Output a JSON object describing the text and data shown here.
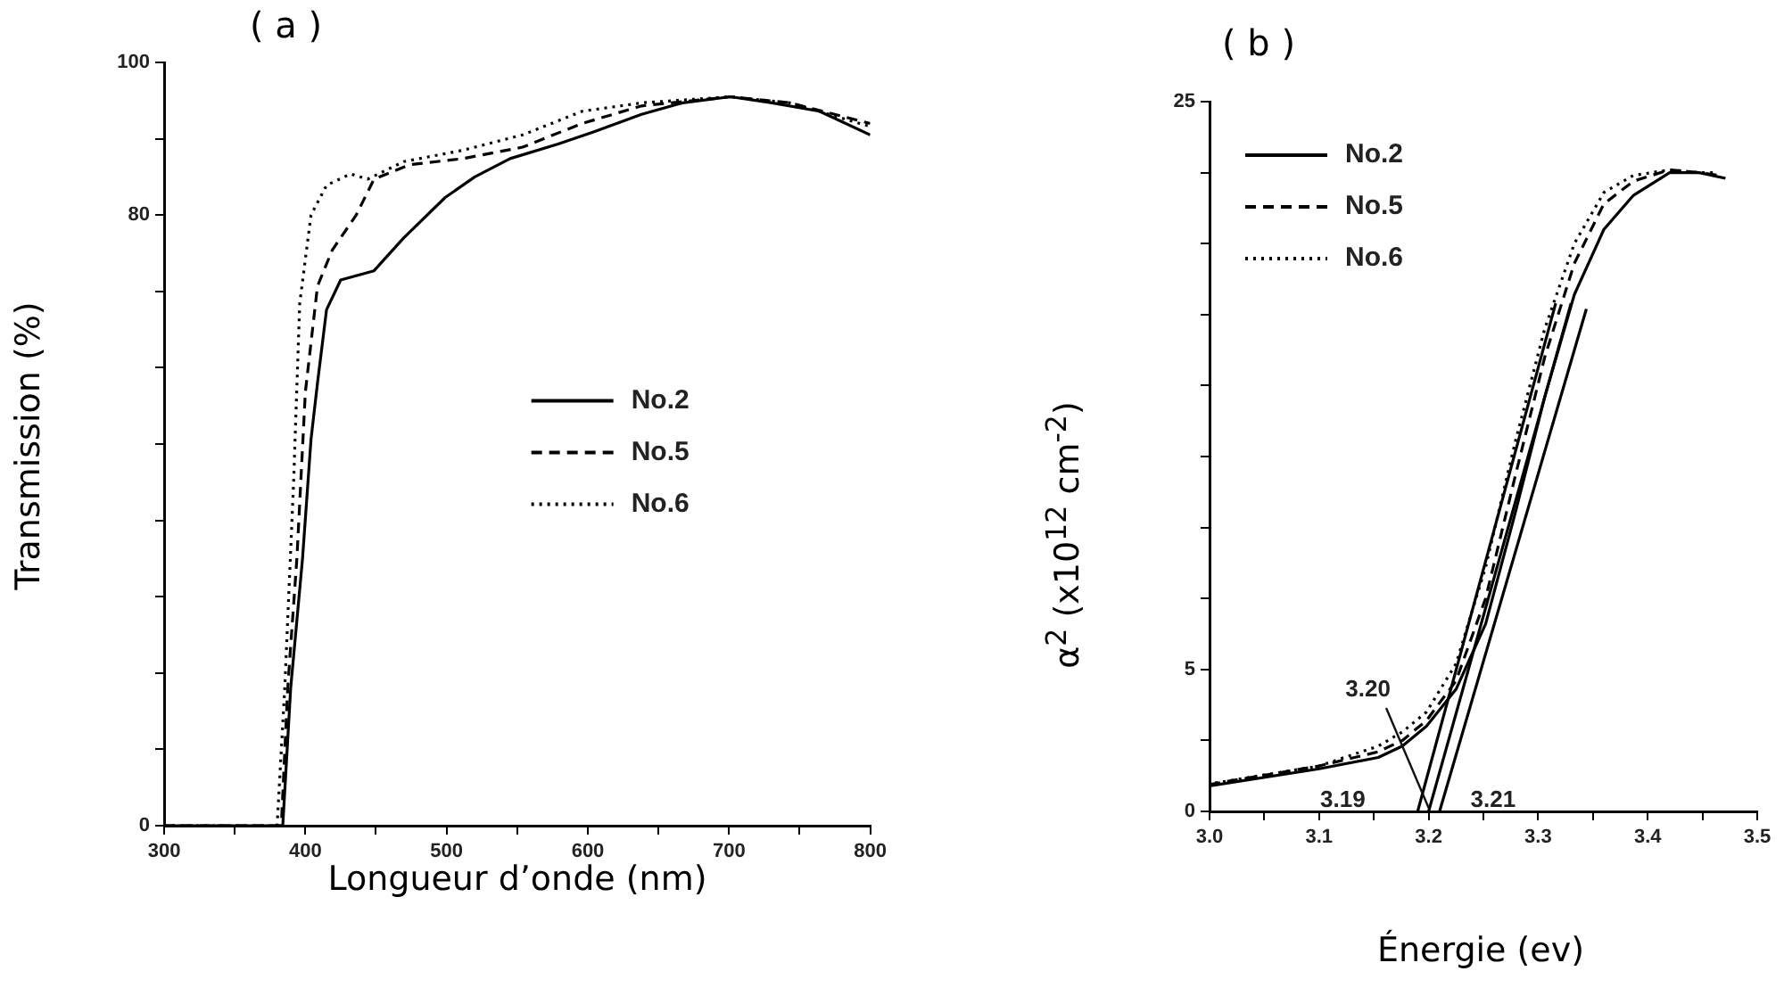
{
  "chart_data": [
    {
      "type": "line",
      "title": "( a )",
      "xlabel": "Longueur d’onde (nm)",
      "ylabel": "Transmission (%)",
      "xlim": [
        300,
        800
      ],
      "xticks": [
        300,
        {
          "value": 350,
          "label": null
        },
        400,
        {
          "value": 450,
          "label": null
        },
        500,
        {
          "value": 550,
          "label": null
        },
        600,
        {
          "value": 650,
          "label": null
        },
        700,
        {
          "value": 750,
          "label": null
        },
        800
      ],
      "ylim": [
        0,
        100
      ],
      "yticks": [
        0,
        {
          "value": 10,
          "label": null
        },
        {
          "value": 20,
          "label": null
        },
        {
          "value": 30,
          "label": null
        },
        {
          "value": 40,
          "label": null
        },
        {
          "value": 50,
          "label": null
        },
        {
          "value": 60,
          "label": null
        },
        {
          "value": 70,
          "label": null
        },
        80,
        {
          "value": 90,
          "label": null
        },
        100
      ],
      "grid": false,
      "legend": "right",
      "marker": "none",
      "series": [
        {
          "name": "No.2",
          "color": "#000000",
          "line_style": "solid",
          "x": [
            300,
            340,
            384,
            389.6,
            398,
            404,
            408.6,
            415,
            425,
            448.6,
            469.6,
            499,
            520,
            545,
            579,
            604,
            638,
            667,
            701,
            730.5,
            764,
            800
          ],
          "values": [
            0,
            0,
            0,
            18,
            35,
            50.6,
            58,
            67.6,
            71.5,
            72.7,
            77,
            82.3,
            85,
            87.4,
            89.3,
            90.9,
            93.2,
            94.7,
            95.5,
            94.7,
            93.6,
            90.5
          ]
        },
        {
          "name": "No.5",
          "color": "#000000",
          "line_style": "dashed",
          "x": [
            300,
            340,
            383,
            387.5,
            394,
            400,
            408.6,
            419,
            436,
            448.6,
            474,
            511.7,
            553.8,
            596,
            638,
            680,
            701,
            743,
            800
          ],
          "values": [
            0,
            0,
            0,
            18,
            35,
            56.8,
            70.7,
            75.4,
            80,
            84.7,
            86.6,
            87.4,
            88.9,
            92,
            94.3,
            95.1,
            95.5,
            94.7,
            92
          ]
        },
        {
          "name": "No.6",
          "color": "#000000",
          "line_style": "dotted",
          "x": [
            300,
            340,
            380,
            385.4,
            391.7,
            396,
            404,
            415,
            432,
            444,
            469.6,
            511.7,
            553.8,
            596,
            638,
            701,
            743,
            800
          ],
          "values": [
            0,
            0,
            0,
            18,
            45,
            68.4,
            80,
            83.9,
            85.4,
            84.7,
            87,
            88.5,
            90.5,
            93.6,
            94.7,
            95.5,
            94.7,
            91.6
          ]
        }
      ]
    },
    {
      "type": "line",
      "title": "( b )",
      "xlabel": "Énergie (ev)",
      "ylabel": "α$^{2}$ (x10$^{12}$ cm$^{-2}$)",
      "xlim": [
        3.0,
        3.5
      ],
      "xticks": [
        "3.0",
        {
          "value": 3.05,
          "label": null
        },
        3.1,
        {
          "value": 3.15,
          "label": null
        },
        3.2,
        {
          "value": 3.25,
          "label": null
        },
        3.3,
        {
          "value": 3.35,
          "label": null
        },
        3.4,
        {
          "value": 3.45,
          "label": null
        },
        3.5
      ],
      "ylim": [
        0,
        25
      ],
      "yticks": [
        0,
        {
          "value": 2.5,
          "label": null
        },
        5,
        {
          "value": 7.5,
          "label": null
        },
        {
          "value": 10,
          "label": null
        },
        {
          "value": 12.5,
          "label": null
        },
        {
          "value": 15,
          "label": null
        },
        {
          "value": 17.5,
          "label": null
        },
        {
          "value": 20,
          "label": null
        },
        {
          "value": 22.5,
          "label": null
        },
        25
      ],
      "grid": false,
      "legend": "top left",
      "marker": "none",
      "series": [
        {
          "name": "No.2",
          "color": "#000000",
          "line_style": "solid",
          "x": [
            3.0,
            3.1,
            3.154,
            3.176,
            3.198,
            3.225,
            3.252,
            3.279,
            3.306,
            3.333,
            3.36,
            3.387,
            3.42,
            3.447,
            3.471
          ],
          "values": [
            0.9,
            1.5,
            1.9,
            2.3,
            3.0,
            4.3,
            6.6,
            10.5,
            14.6,
            18.2,
            20.5,
            21.7,
            22.5,
            22.5,
            22.3
          ]
        },
        {
          "name": "No.5",
          "color": "#000000",
          "line_style": "dashed",
          "x": [
            3.0,
            3.1,
            3.154,
            3.176,
            3.198,
            3.225,
            3.252,
            3.279,
            3.306,
            3.333,
            3.36,
            3.387,
            3.42,
            3.447,
            3.465
          ],
          "values": [
            0.95,
            1.6,
            2.1,
            2.5,
            3.2,
            4.6,
            7.5,
            11.8,
            16,
            19.3,
            21.4,
            22.2,
            22.6,
            22.5,
            22.4
          ]
        },
        {
          "name": "No.6",
          "color": "#000000",
          "line_style": "dotted",
          "x": [
            3.005,
            3.1,
            3.154,
            3.176,
            3.198,
            3.225,
            3.252,
            3.279,
            3.306,
            3.333,
            3.36,
            3.387,
            3.42,
            3.447,
            3.46
          ],
          "values": [
            1.0,
            1.6,
            2.3,
            2.8,
            3.5,
            5.2,
            8.6,
            13,
            17,
            20,
            21.8,
            22.4,
            22.6,
            22.5,
            22.5
          ]
        },
        {
          "type": "line",
          "color": "#000000",
          "line_style": "solid",
          "x": [
            3.19,
            3.316
          ],
          "values": [
            0,
            17.9
          ]
        },
        {
          "type": "line",
          "color": "#000000",
          "line_style": "solid",
          "x": [
            3.2,
            3.33
          ],
          "values": [
            0,
            17.9
          ]
        },
        {
          "type": "line",
          "color": "#000000",
          "line_style": "solid",
          "x": [
            3.21,
            3.344
          ],
          "values": [
            0,
            17.7
          ]
        }
      ],
      "annotations": [
        {
          "text": "3.19",
          "x": 3.19,
          "y": 0
        },
        {
          "text": "3.20",
          "x": 3.2,
          "y": 0
        },
        {
          "text": "3.21",
          "x": 3.21,
          "y": 0
        }
      ]
    }
  ]
}
